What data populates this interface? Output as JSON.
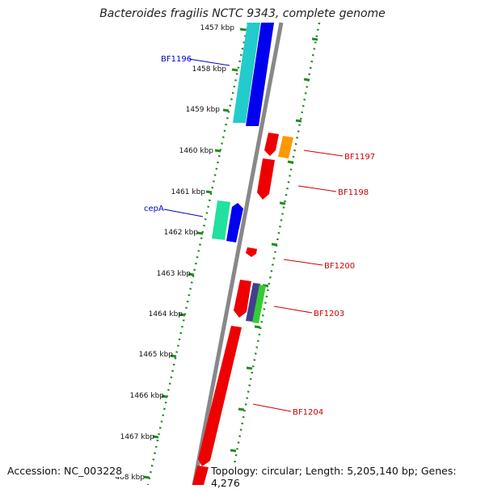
{
  "title": "Bacteroides fragilis NCTC 9343, complete genome",
  "footer": {
    "accession": "Accession: NC_003228",
    "info": "Topology: circular; Length: 5,205,140 bp; Genes: 4,276"
  },
  "ticks": [
    "1457 kbp",
    "1458 kbp",
    "1459 kbp",
    "1460 kbp",
    "1461 kbp",
    "1462 kbp",
    "1463 kbp",
    "1464 kbp",
    "1465 kbp",
    "1466 kbp",
    "1467 kbp",
    "468 kbp"
  ],
  "gene_labels": [
    {
      "text": "BF1196",
      "color": "#0000cc"
    },
    {
      "text": "BF1197",
      "color": "#cc0000"
    },
    {
      "text": "BF1198",
      "color": "#cc0000"
    },
    {
      "text": "cepA",
      "color": "#0000cc"
    },
    {
      "text": "BF1200",
      "color": "#cc0000"
    },
    {
      "text": "BF1203",
      "color": "#cc0000"
    },
    {
      "text": "BF1204",
      "color": "#cc0000"
    }
  ],
  "colors": {
    "backbone": "#888888",
    "dotted_track": "#228b22",
    "cyan": "#22cccc",
    "blue": "#0000ee",
    "red": "#ee0000",
    "orange": "#ff9900",
    "teal": "#22e0a0",
    "navy": "#404090",
    "green": "#33cc33"
  }
}
